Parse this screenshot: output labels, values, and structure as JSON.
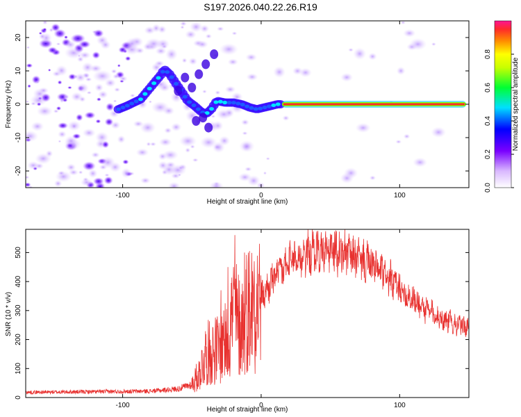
{
  "title": "S197.2026.040.22.26.R19",
  "chart_data": [
    {
      "type": "heatmap",
      "name": "spectrogram",
      "xlabel": "Height of straight line (km)",
      "ylabel": "Frequency (Hz)",
      "xlim": [
        -170,
        150
      ],
      "ylim": [
        -25,
        25
      ],
      "xticks": [
        -100,
        0,
        100
      ],
      "yticks": [
        -20,
        -10,
        0,
        10,
        20
      ],
      "ridge": {
        "description_of_values": "approximate dominant frequency (Hz) vs height (km)",
        "x": [
          -103,
          -97,
          -92,
          -87,
          -83,
          -79,
          -76,
          -72,
          -70,
          -66,
          -62,
          -57,
          -53,
          -48,
          -44,
          -40,
          -36,
          -32,
          -26,
          -20,
          -14,
          -8,
          -3,
          2,
          7,
          12,
          15
        ],
        "y": [
          -1.5,
          -0.5,
          0.5,
          1.5,
          3.5,
          5.5,
          7.0,
          9.0,
          10.5,
          9.0,
          6.5,
          3.5,
          1.0,
          -0.5,
          -2.0,
          -3.0,
          -1.5,
          1.0,
          0.5,
          0.5,
          0.0,
          -1.0,
          -1.5,
          -1.0,
          -0.5,
          0.0,
          0.0
        ]
      },
      "steady_line": {
        "x_start": 15,
        "x_end": 148,
        "frequency": 0
      }
    },
    {
      "type": "colorbar",
      "name": "amplitude-colorbar",
      "label": "Normalized spectral amplitude",
      "range": [
        0.0,
        1.0
      ],
      "ticks": [
        "0.0",
        "0.2",
        "0.4",
        "0.6",
        "0.8"
      ],
      "tick_values": [
        0.0,
        0.2,
        0.4,
        0.6,
        0.8
      ]
    },
    {
      "type": "line",
      "name": "snr-plot",
      "xlabel": "Height of straight line (km)",
      "ylabel": "SNR (10 * v/v)",
      "xlim": [
        -170,
        150
      ],
      "ylim": [
        0,
        580
      ],
      "xticks": [
        -100,
        0,
        100
      ],
      "yticks": [
        0,
        100,
        200,
        300,
        400,
        500
      ],
      "color": "#e8312f",
      "envelope": {
        "x": [
          -170,
          -120,
          -80,
          -60,
          -50,
          -45,
          -40,
          -35,
          -30,
          -25,
          -20,
          -15,
          -10,
          -5,
          0,
          10,
          20,
          30,
          40,
          50,
          60,
          70,
          80,
          90,
          100,
          110,
          120,
          130,
          140,
          150
        ],
        "y": [
          18,
          20,
          22,
          30,
          45,
          80,
          150,
          160,
          170,
          190,
          300,
          240,
          310,
          320,
          340,
          420,
          460,
          490,
          505,
          505,
          500,
          480,
          455,
          420,
          375,
          335,
          300,
          275,
          255,
          240
        ]
      },
      "spikes": {
        "x": [
          -29,
          -27,
          -24,
          -22,
          -19,
          -17,
          -12,
          -5
        ],
        "y": [
          370,
          300,
          450,
          330,
          560,
          280,
          500,
          470
        ]
      }
    }
  ]
}
